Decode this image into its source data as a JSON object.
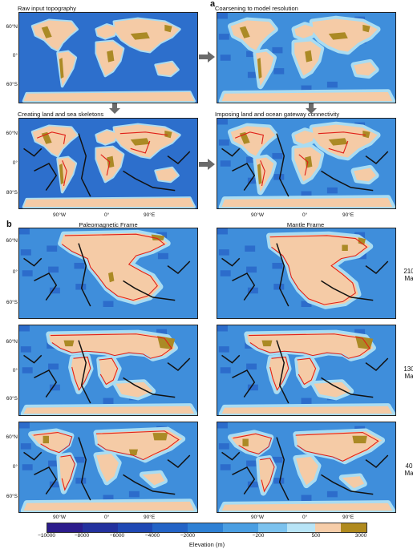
{
  "panel_a": {
    "label": "a",
    "maps": [
      {
        "id": "raw",
        "title": "Raw input topography"
      },
      {
        "id": "coarse",
        "title": "Coarsening to model resolution"
      },
      {
        "id": "skeleton",
        "title": "Creating land and sea skeletons"
      },
      {
        "id": "gateway",
        "title": "Imposing land and ocean gateway connectivity"
      }
    ],
    "lat_labels": [
      "60°N",
      "0°",
      "60°S"
    ],
    "lat_labels_bottom": [
      "60°N",
      "0°",
      "80°S"
    ],
    "lon_labels": [
      "90°W",
      "0°",
      "90°E"
    ]
  },
  "panel_b": {
    "label": "b",
    "col_titles": [
      "Paleomagnetic Frame",
      "Mantle Frame"
    ],
    "lat_labels": [
      "60°N",
      "0°",
      "60°S"
    ],
    "lon_labels": [
      "90°W",
      "0°",
      "90°E"
    ],
    "rows": [
      {
        "value": "210",
        "unit": "Ma"
      },
      {
        "value": "130",
        "unit": "Ma"
      },
      {
        "value": "40",
        "unit": "Ma"
      }
    ]
  },
  "colorbar": {
    "title": "Elevation (m)",
    "ticks": [
      "−10000",
      "−8000",
      "−6000",
      "−4000",
      "−2000",
      "−200",
      "500",
      "3000"
    ],
    "colors": [
      "#2c1c8c",
      "#23319e",
      "#1f48b4",
      "#2363c6",
      "#2e80d4",
      "#4a9ee2",
      "#7cc2ee",
      "#b8e4f6",
      "#f6cda9",
      "#b08a1e"
    ]
  },
  "colors": {
    "ocean_deep": "#1f55bf",
    "ocean_mid": "#3f8edb",
    "shelf": "#a9dcf2",
    "land": "#f5cba6",
    "highland": "#ab8a25",
    "land_skeleton": "#e02018",
    "sea_skeleton": "#111111",
    "arrow": "#6b6b6b"
  }
}
